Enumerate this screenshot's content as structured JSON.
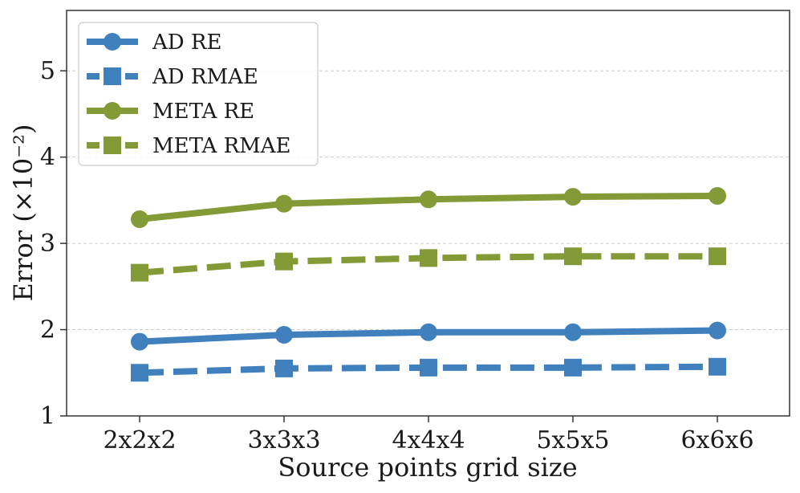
{
  "chart_data": {
    "type": "line",
    "title": "",
    "xlabel": "Source points grid size",
    "ylabel": "Error (×10⁻²)",
    "categories": [
      "2x2x2",
      "3x3x3",
      "4x4x4",
      "5x5x5",
      "6x6x6"
    ],
    "ylim": [
      1,
      5.7
    ],
    "yticks": [
      1,
      2,
      3,
      4,
      5
    ],
    "grid": "horizontal-dashed",
    "legend_position": "top-left",
    "series": [
      {
        "name": "AD RE",
        "color": "#3f80bd",
        "linestyle": "solid",
        "marker": "circle",
        "values": [
          1.86,
          1.94,
          1.97,
          1.97,
          1.99
        ]
      },
      {
        "name": "AD RMAE",
        "color": "#3f80bd",
        "linestyle": "dashed",
        "marker": "square",
        "values": [
          1.5,
          1.55,
          1.56,
          1.56,
          1.57
        ]
      },
      {
        "name": "META RE",
        "color": "#849a36",
        "linestyle": "solid",
        "marker": "circle",
        "values": [
          3.28,
          3.46,
          3.51,
          3.54,
          3.55
        ]
      },
      {
        "name": "META RMAE",
        "color": "#849a36",
        "linestyle": "dashed",
        "marker": "square",
        "values": [
          2.66,
          2.79,
          2.83,
          2.85,
          2.85
        ]
      }
    ]
  }
}
